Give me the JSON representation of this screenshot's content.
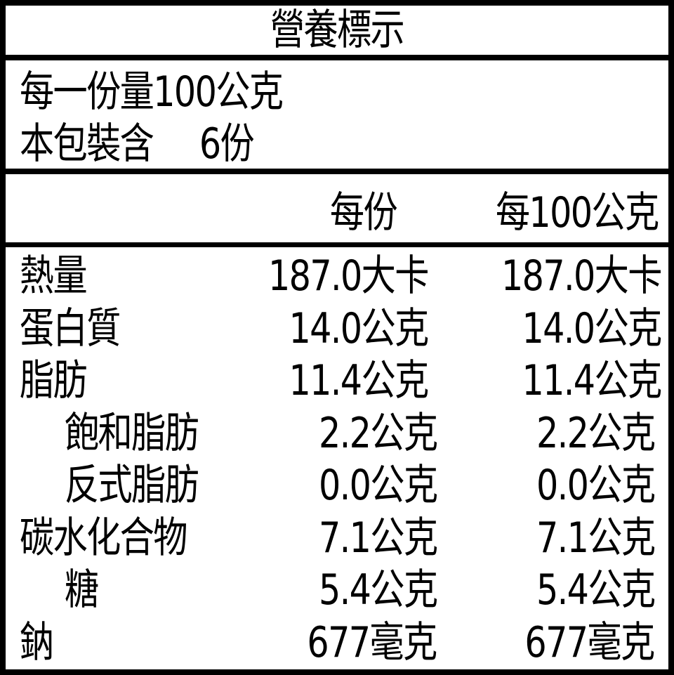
{
  "title": "營養標示",
  "serving": {
    "serving_size_label": "每一份量",
    "serving_size_value": "100公克",
    "servings_label": "本包裝含",
    "servings_value": "6份"
  },
  "columns": [
    "每份",
    "每100公克"
  ],
  "rows": [
    {
      "label": "熱量",
      "indent": false,
      "per_serving": "187.0大卡",
      "per_100g": "187.0大卡"
    },
    {
      "label": "蛋白質",
      "indent": false,
      "per_serving": "14.0公克",
      "per_100g": "14.0公克"
    },
    {
      "label": "脂肪",
      "indent": false,
      "per_serving": "11.4公克",
      "per_100g": "11.4公克"
    },
    {
      "label": "飽和脂肪",
      "indent": true,
      "per_serving": "2.2公克",
      "per_100g": "2.2公克"
    },
    {
      "label": "反式脂肪",
      "indent": true,
      "per_serving": "0.0公克",
      "per_100g": "0.0公克"
    },
    {
      "label": "碳水化合物",
      "indent": false,
      "per_serving": "7.1公克",
      "per_100g": "7.1公克"
    },
    {
      "label": "糖",
      "indent": true,
      "per_serving": "5.4公克",
      "per_100g": "5.4公克"
    },
    {
      "label": "鈉",
      "indent": false,
      "per_serving": "677毫克",
      "per_100g": "677毫克"
    }
  ]
}
